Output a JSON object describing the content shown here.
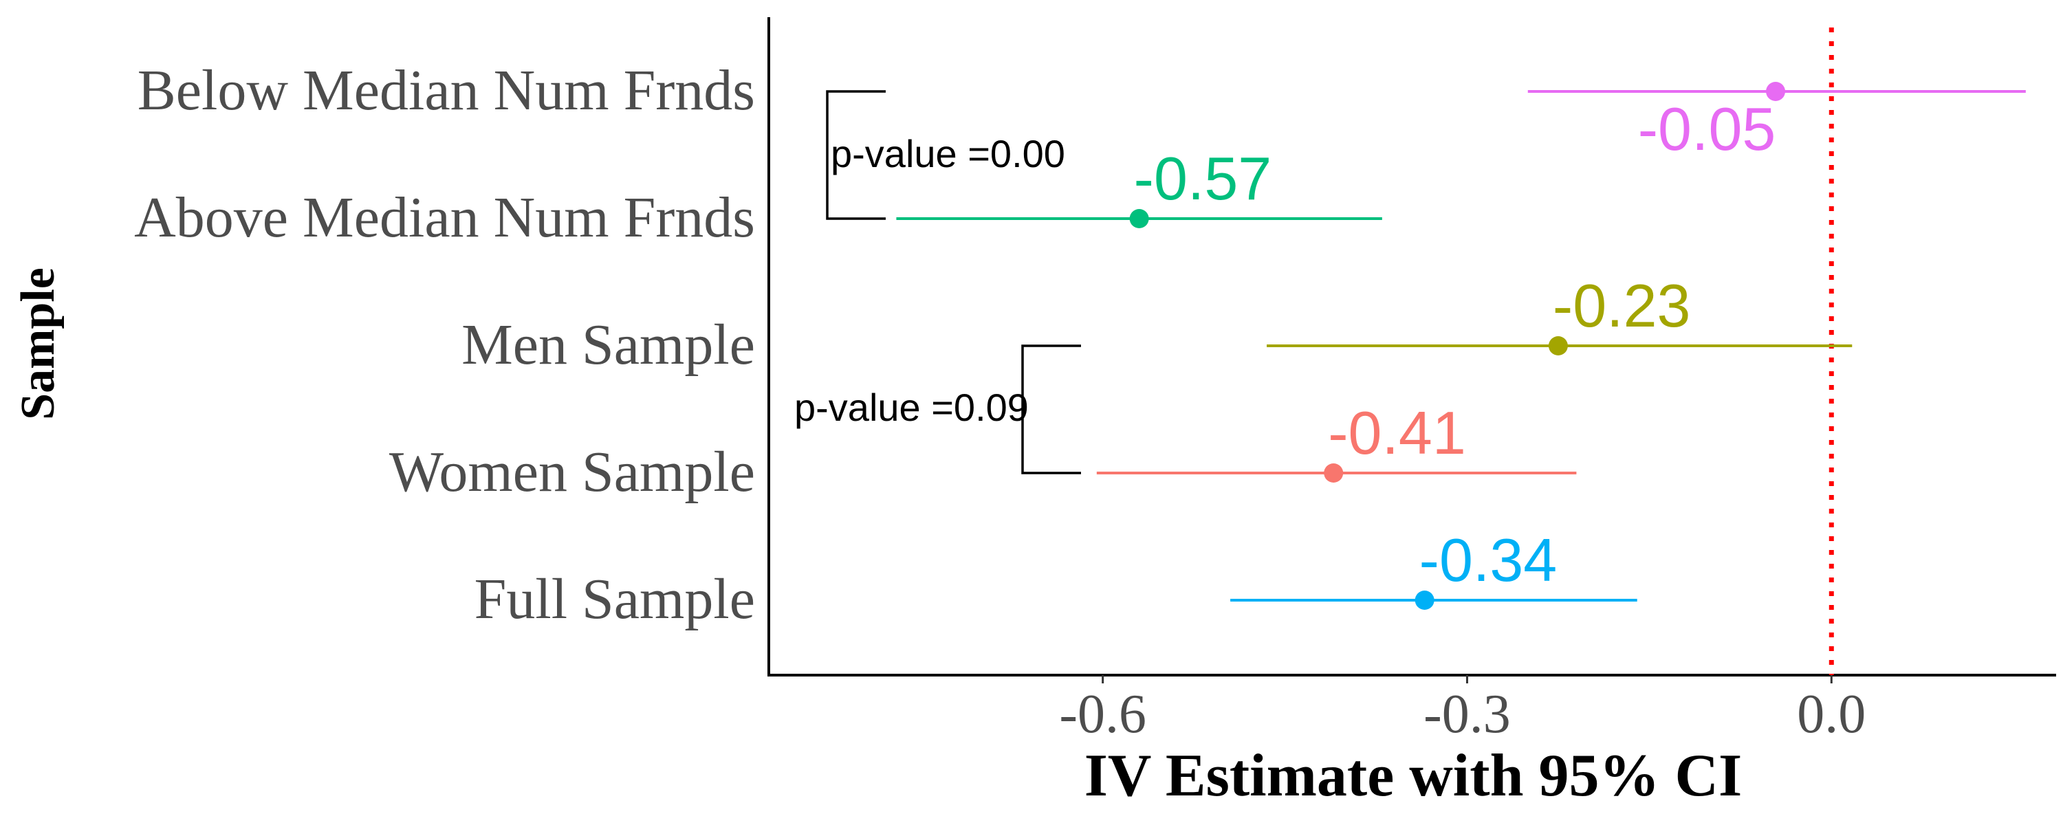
{
  "chart_data": {
    "type": "scatter",
    "subtype": "forest-plot",
    "title": "",
    "xlabel": "IV Estimate with 95% CI",
    "ylabel": "Sample",
    "xlim": [
      -0.875,
      0.185
    ],
    "xticks": [
      -0.6,
      -0.3,
      0.0
    ],
    "xtick_labels": [
      "-0.6",
      "-0.3",
      "0.0"
    ],
    "reference_line": {
      "x": 0.0,
      "style": "dotted",
      "color": "#ff0000"
    },
    "grid": false,
    "legend": "none",
    "categories": [
      "Below Median Num Frnds",
      "Above Median Num Frnds",
      "Men Sample",
      "Women Sample",
      "Full Sample"
    ],
    "points": [
      {
        "category": "Below Median Num Frnds",
        "estimate": -0.046,
        "ci_low": -0.25,
        "ci_high": 0.16,
        "label": "-0.05",
        "color": "#e76bf3"
      },
      {
        "category": "Above Median Num Frnds",
        "estimate": -0.57,
        "ci_low": -0.77,
        "ci_high": -0.37,
        "label": "-0.57",
        "color": "#00bf7d"
      },
      {
        "category": "Men Sample",
        "estimate": -0.225,
        "ci_low": -0.465,
        "ci_high": 0.017,
        "label": "-0.23",
        "color": "#a3a500"
      },
      {
        "category": "Women Sample",
        "estimate": -0.41,
        "ci_low": -0.605,
        "ci_high": -0.21,
        "label": "-0.41",
        "color": "#f8766d"
      },
      {
        "category": "Full Sample",
        "estimate": -0.335,
        "ci_low": -0.495,
        "ci_high": -0.16,
        "label": "-0.34",
        "color": "#00b0f6"
      }
    ],
    "brackets": [
      {
        "from": "Below Median Num Frnds",
        "to": "Above Median Num Frnds",
        "label": "p-value =0.00"
      },
      {
        "from": "Men Sample",
        "to": "Women Sample",
        "label": "p-value =0.09"
      }
    ]
  }
}
